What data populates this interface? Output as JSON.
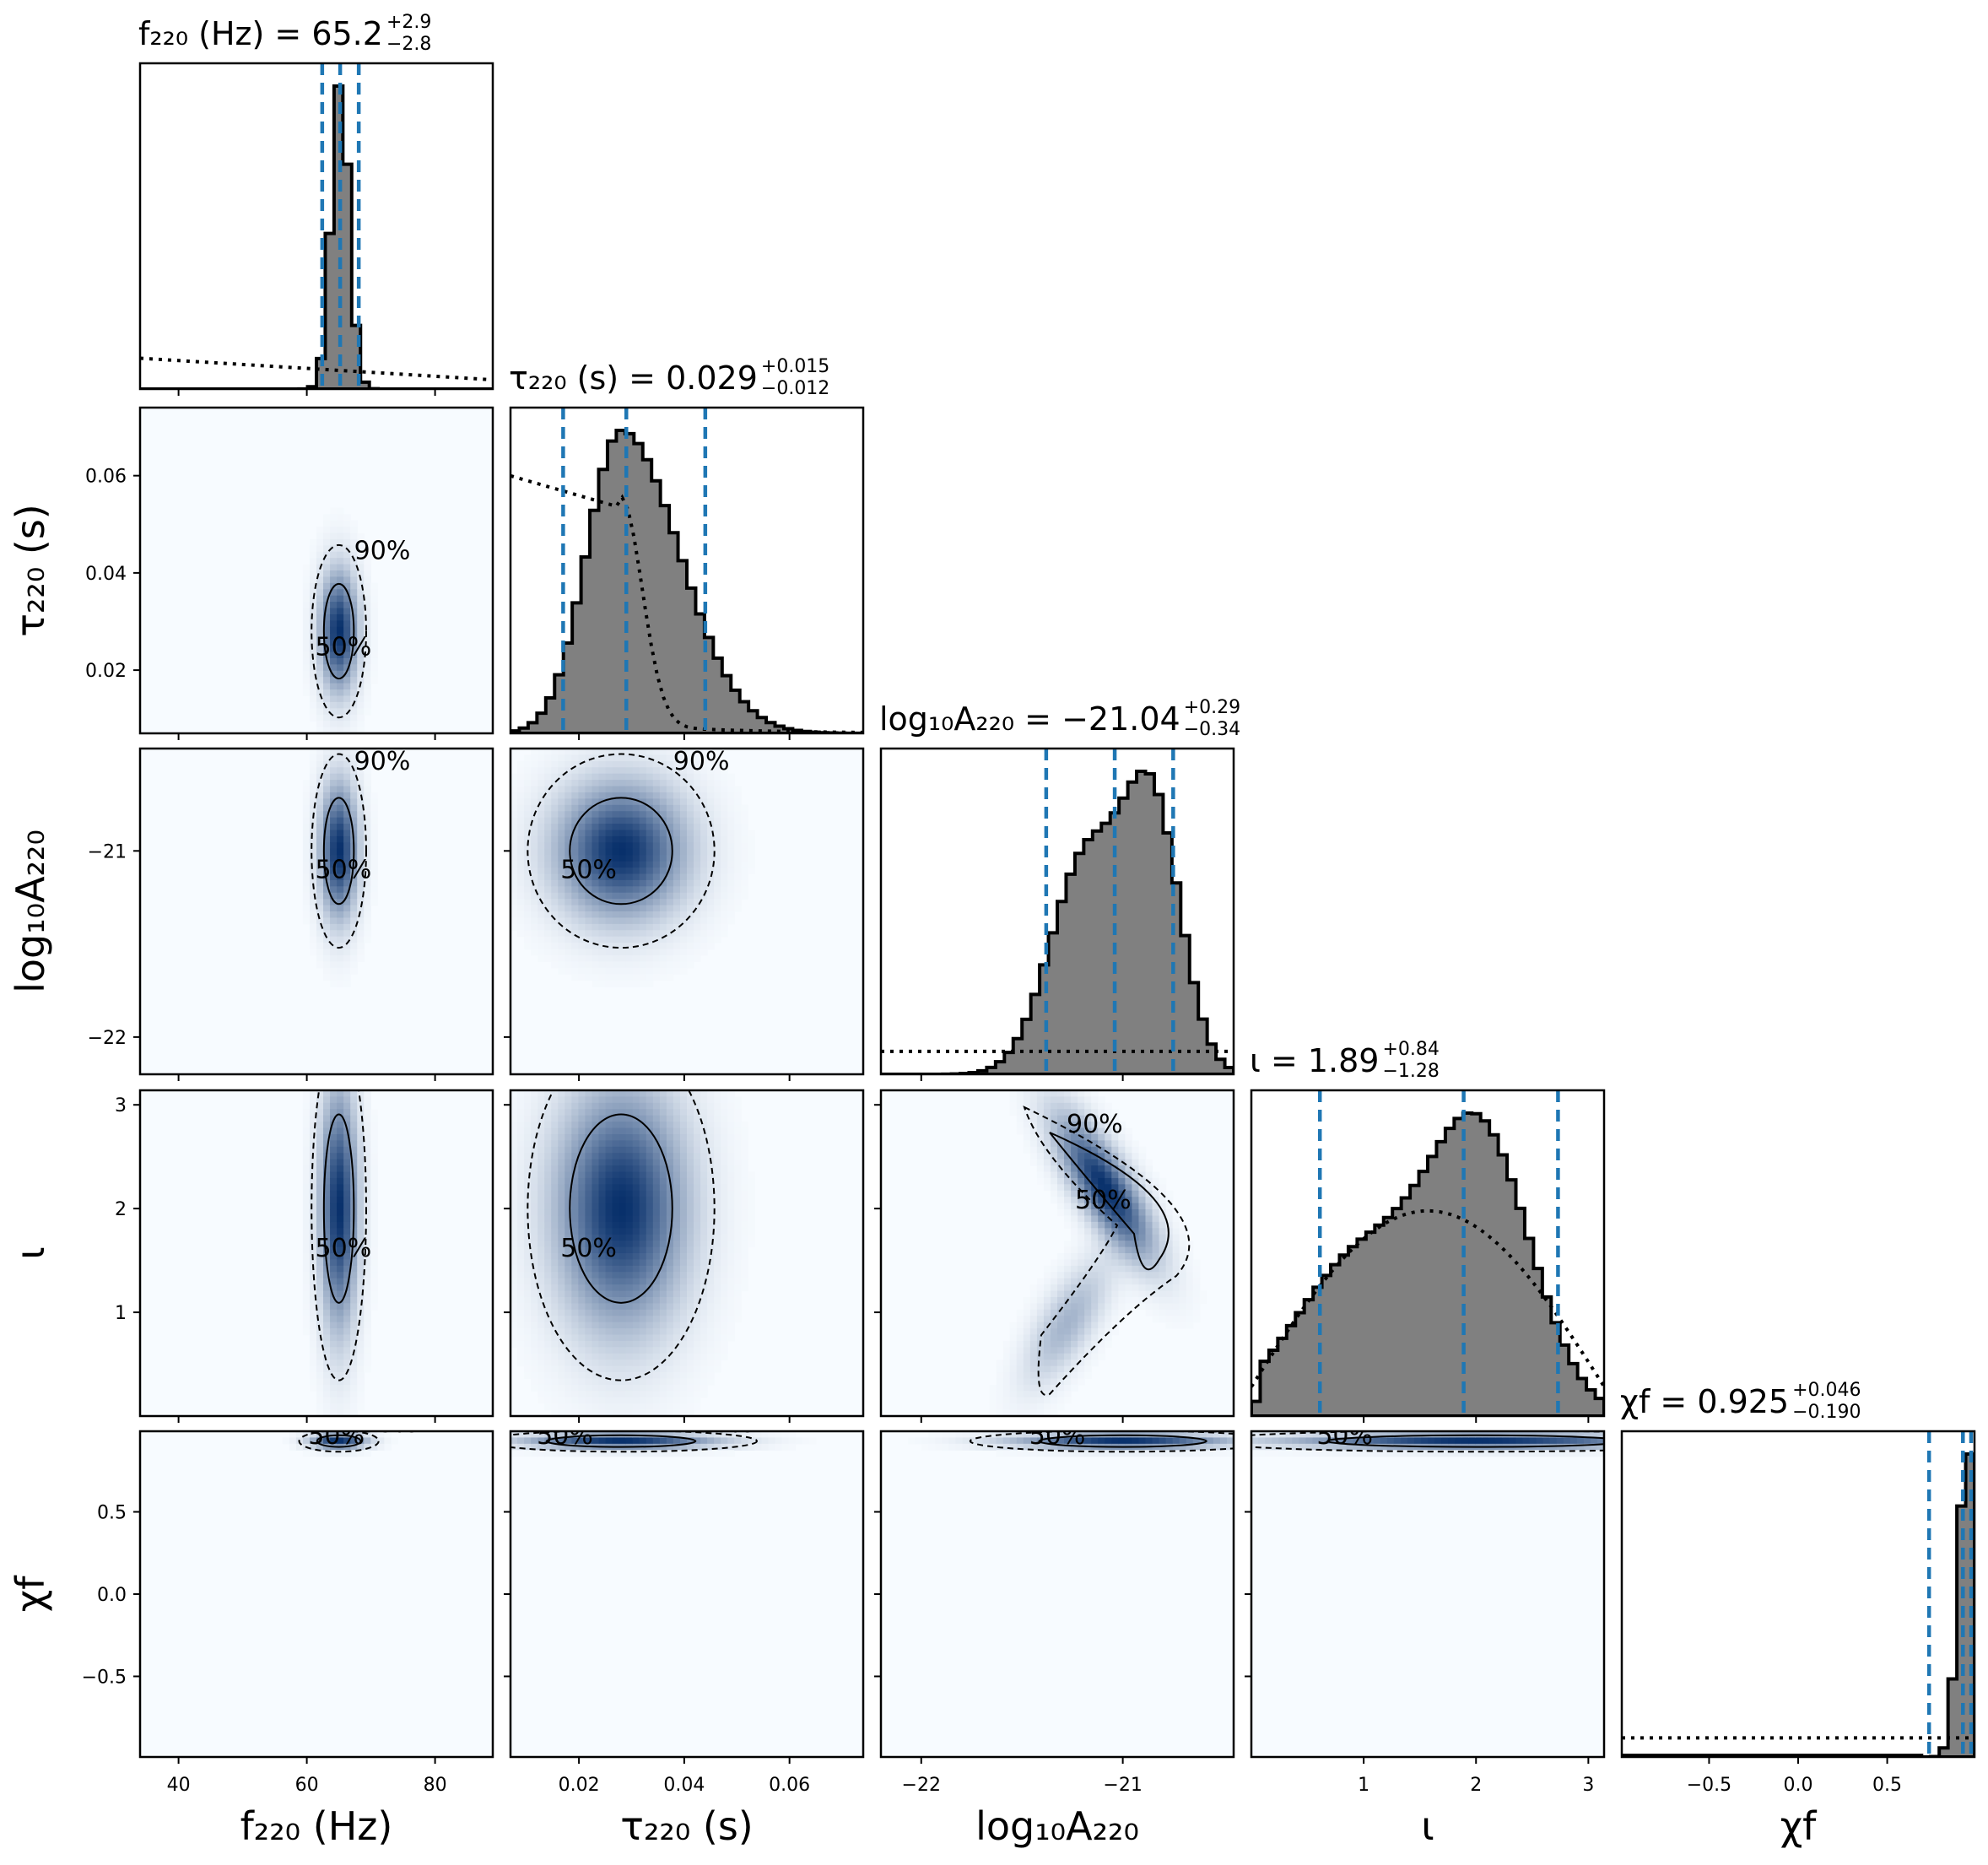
{
  "chart_data": {
    "type": "corner",
    "parameters": [
      {
        "key": "f220",
        "name": "f₂₂₀ (Hz)",
        "axis_range": [
          34,
          89
        ],
        "ticks": [
          40,
          60,
          80
        ],
        "tick_labels": [
          "40",
          "60",
          "80"
        ],
        "title": "f₂₂₀ (Hz) = 65.2",
        "title_plus": "+2.9",
        "title_minus": "−2.8",
        "median": 65.2,
        "lower": 62.4,
        "upper": 68.1,
        "center": 65.0,
        "width": 1.8
      },
      {
        "key": "tau220",
        "name": "τ₂₂₀ (s)",
        "axis_range": [
          0.007,
          0.074
        ],
        "ticks": [
          0.02,
          0.04,
          0.06
        ],
        "tick_labels": [
          "0.02",
          "0.04",
          "0.06"
        ],
        "title": "τ₂₂₀ (s) = 0.029",
        "title_plus": "+0.015",
        "title_minus": "−0.012",
        "median": 0.029,
        "lower": 0.017,
        "upper": 0.044,
        "center": 0.028,
        "width": 0.0075
      },
      {
        "key": "logA220",
        "name": "log₁₀A₂₂₀",
        "axis_range": [
          -22.2,
          -20.45
        ],
        "ticks": [
          -22,
          -21
        ],
        "tick_labels": [
          "−22",
          "−21"
        ],
        "title": "log₁₀A₂₂₀ = −21.04",
        "title_plus": "+0.29",
        "title_minus": "−0.34",
        "median": -21.04,
        "lower": -21.38,
        "upper": -20.75,
        "center": -21.0,
        "width": 0.22
      },
      {
        "key": "iota",
        "name": "ι",
        "axis_range": [
          0.0,
          3.14
        ],
        "ticks": [
          1,
          2,
          3
        ],
        "tick_labels": [
          "1",
          "2",
          "3"
        ],
        "title": "ι = 1.89",
        "title_plus": "+0.84",
        "title_minus": "−1.28",
        "median": 1.89,
        "lower": 0.61,
        "upper": 2.73,
        "center": 2.0,
        "width": 0.7
      },
      {
        "key": "chif",
        "name": "χf",
        "axis_range": [
          -0.99,
          0.99
        ],
        "ticks": [
          -0.5,
          0.0,
          0.5
        ],
        "tick_labels": [
          "−0.5",
          "0.0",
          "0.5"
        ],
        "title": "χf = 0.925",
        "title_plus": "+0.046",
        "title_minus": "−0.190",
        "median": 0.925,
        "lower": 0.735,
        "upper": 0.971,
        "center": 0.94,
        "width": 0.025
      }
    ],
    "contour_levels": [
      "50%",
      "90%"
    ],
    "colors": {
      "hist_fill": "#808080",
      "hist_edge": "#000000",
      "quantile_line": "#1f77b4",
      "density": "Blues",
      "prior": "#000000"
    }
  }
}
